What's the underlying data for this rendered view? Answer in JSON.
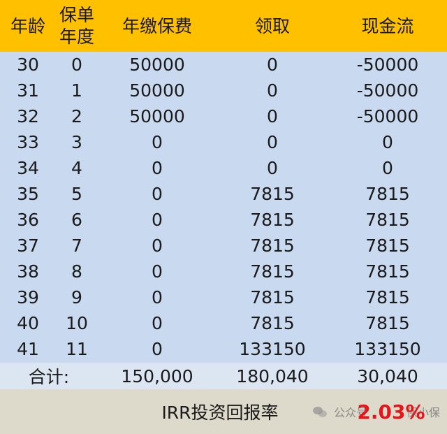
{
  "header": {
    "age": "年龄",
    "policy_year_line1": "保单",
    "policy_year_line2": "年度",
    "annual_premium": "年缴保费",
    "payout": "领取",
    "cash_flow": "现金流"
  },
  "rows": [
    {
      "age": "30",
      "year": "0",
      "premium": "50000",
      "payout": "0",
      "cash_flow": "-50000"
    },
    {
      "age": "31",
      "year": "1",
      "premium": "50000",
      "payout": "0",
      "cash_flow": "-50000"
    },
    {
      "age": "32",
      "year": "2",
      "premium": "50000",
      "payout": "0",
      "cash_flow": "-50000"
    },
    {
      "age": "33",
      "year": "3",
      "premium": "0",
      "payout": "0",
      "cash_flow": "0"
    },
    {
      "age": "34",
      "year": "4",
      "premium": "0",
      "payout": "0",
      "cash_flow": "0"
    },
    {
      "age": "35",
      "year": "5",
      "premium": "0",
      "payout": "7815",
      "cash_flow": "7815"
    },
    {
      "age": "36",
      "year": "6",
      "premium": "0",
      "payout": "7815",
      "cash_flow": "7815"
    },
    {
      "age": "37",
      "year": "7",
      "premium": "0",
      "payout": "7815",
      "cash_flow": "7815"
    },
    {
      "age": "38",
      "year": "8",
      "premium": "0",
      "payout": "7815",
      "cash_flow": "7815"
    },
    {
      "age": "39",
      "year": "9",
      "premium": "0",
      "payout": "7815",
      "cash_flow": "7815"
    },
    {
      "age": "40",
      "year": "10",
      "premium": "0",
      "payout": "7815",
      "cash_flow": "7815"
    },
    {
      "age": "41",
      "year": "11",
      "premium": "0",
      "payout": "133150",
      "cash_flow": "133150"
    }
  ],
  "total": {
    "label": "合计:",
    "premium": "150,000",
    "payout": "180,040",
    "cash_flow": "30,040"
  },
  "irr": {
    "label": "IRR投资回报率",
    "value": "2.03%",
    "value_color": "#E8141B"
  },
  "watermark": {
    "icon": "wechat-icon",
    "text_left": "公众号",
    "text_right": "保小保"
  },
  "colors": {
    "header_bg": "#FFC000",
    "body_bg": "#C9DAF0",
    "total_bg": "#DCE6F2",
    "irr_bg": "#DDDACB"
  }
}
